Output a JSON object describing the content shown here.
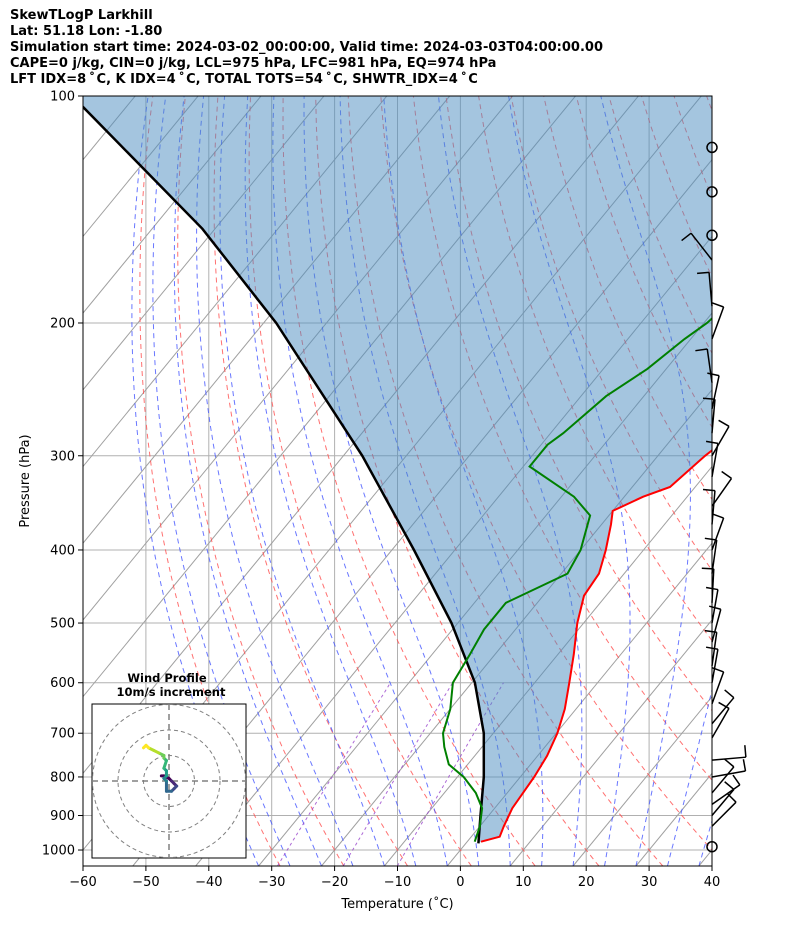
{
  "header": {
    "line1": "SkewTLogP Larkhill",
    "line2": "Lat: 51.18   Lon: -1.80",
    "line3": "Simulation start time: 2024-03-02_00:00:00, Valid time: 2024-03-03T04:00:00.00",
    "line4": "CAPE=0 j/kg, CIN=0 j/kg, LCL=975 hPa, LFC=981 hPa, EQ=974 hPa",
    "line5": "LFT IDX=8$^\\circ$C, K IDX=4$^\\circ$C, TOTAL TOTS=54$^\\circ$C, SHWTR_IDX=4$^\\circ$C"
  },
  "header_display": {
    "line5": "LFT IDX=8 ˚ C, K IDX=4 ˚ C, TOTAL TOTS=54 ˚ C, SHWTR_IDX=4 ˚ C"
  },
  "chart_data": {
    "type": "skew-t log-p",
    "xlabel": "Temperature (˚C)",
    "ylabel": "Pressure (hPa)",
    "xlim": [
      -60,
      40
    ],
    "ylim": [
      1050,
      100
    ],
    "x_ticks": [
      -60,
      -50,
      -40,
      -30,
      -20,
      -10,
      0,
      10,
      20,
      30,
      40
    ],
    "x_tick_labels": [
      "−60",
      "−50",
      "−40",
      "−30",
      "−20",
      "−10",
      "0",
      "10",
      "20",
      "30",
      "40"
    ],
    "y_ticks": [
      1000,
      900,
      800,
      700,
      600,
      500,
      400,
      300,
      200,
      100
    ],
    "grid": true,
    "series": [
      {
        "name": "temperature",
        "color": "#ff0000",
        "points": [
          [
            975,
            2.2
          ],
          [
            960,
            4.5
          ],
          [
            930,
            3.8
          ],
          [
            880,
            2.8
          ],
          [
            800,
            2.2
          ],
          [
            750,
            1.5
          ],
          [
            700,
            0.2
          ],
          [
            650,
            -1.8
          ],
          [
            600,
            -4.5
          ],
          [
            550,
            -7.5
          ],
          [
            500,
            -11
          ],
          [
            460,
            -13.5
          ],
          [
            430,
            -14
          ],
          [
            400,
            -16
          ],
          [
            370,
            -18.5
          ],
          [
            355,
            -20
          ],
          [
            340,
            -17
          ],
          [
            330,
            -14
          ],
          [
            300,
            -12.5
          ],
          [
            270,
            -10
          ],
          [
            240,
            -7.5
          ],
          [
            210,
            -5
          ],
          [
            200,
            -4
          ],
          [
            180,
            -4
          ],
          [
            160,
            -4
          ],
          [
            150,
            -4.5
          ],
          [
            140,
            -6
          ],
          [
            120,
            -4.5
          ],
          [
            100,
            -4
          ]
        ]
      },
      {
        "name": "dewpoint",
        "color": "#008000",
        "points": [
          [
            975,
            1.2
          ],
          [
            930,
            0
          ],
          [
            880,
            -2
          ],
          [
            840,
            -5
          ],
          [
            800,
            -9
          ],
          [
            770,
            -13
          ],
          [
            730,
            -16
          ],
          [
            700,
            -18
          ],
          [
            650,
            -20
          ],
          [
            600,
            -23
          ],
          [
            550,
            -24
          ],
          [
            510,
            -25
          ],
          [
            470,
            -25
          ],
          [
            430,
            -19
          ],
          [
            400,
            -20
          ],
          [
            360,
            -23
          ],
          [
            340,
            -28
          ],
          [
            310,
            -39
          ],
          [
            290,
            -39
          ],
          [
            280,
            -38
          ],
          [
            250,
            -36
          ],
          [
            230,
            -33
          ],
          [
            210,
            -31
          ],
          [
            200,
            -29.5
          ],
          [
            180,
            -28
          ],
          [
            160,
            -24
          ],
          [
            140,
            -22
          ],
          [
            120,
            -20
          ],
          [
            100,
            -20
          ]
        ]
      },
      {
        "name": "parcel",
        "color": "#000000",
        "points": [
          [
            980,
            2
          ],
          [
            900,
            -1.3
          ],
          [
            800,
            -5.8
          ],
          [
            700,
            -11.5
          ],
          [
            600,
            -19.5
          ],
          [
            500,
            -31
          ],
          [
            400,
            -46.5
          ],
          [
            300,
            -67
          ],
          [
            200,
            -98
          ],
          [
            150,
            -122
          ],
          [
            100,
            -160
          ]
        ]
      }
    ],
    "reference_lines": [
      "dry adiabats",
      "moist adiabats",
      "isotherms"
    ],
    "wind_barbs": {
      "x": 40,
      "calm_pressures": [
        990,
        117,
        134,
        153
      ],
      "pressures": [
        165,
        190,
        210,
        240,
        260,
        280,
        300,
        320,
        350,
        370,
        400,
        430,
        470,
        500,
        530,
        570,
        600,
        640,
        680,
        710,
        760,
        800,
        840,
        870,
        900,
        930
      ]
    },
    "hodograph": {
      "title": "Wind Profile",
      "subtitle": "10m/s increment",
      "rings": [
        10,
        20,
        30
      ],
      "trace": [
        [
          -3,
          2
        ],
        [
          -2,
          2
        ],
        [
          0,
          1
        ],
        [
          1,
          0
        ],
        [
          2,
          -1
        ],
        [
          3,
          -2
        ],
        [
          2,
          -3
        ],
        [
          1,
          -4
        ],
        [
          -1,
          -4
        ],
        [
          -1,
          0
        ],
        [
          -2,
          1
        ],
        [
          -1,
          2
        ],
        [
          -1,
          4
        ],
        [
          -2,
          5
        ],
        [
          -1,
          8
        ],
        [
          -2,
          9
        ],
        [
          -2,
          10
        ],
        [
          -4,
          11
        ],
        [
          -6,
          12
        ],
        [
          -8,
          13
        ],
        [
          -9,
          14
        ],
        [
          -10,
          13
        ]
      ]
    }
  }
}
